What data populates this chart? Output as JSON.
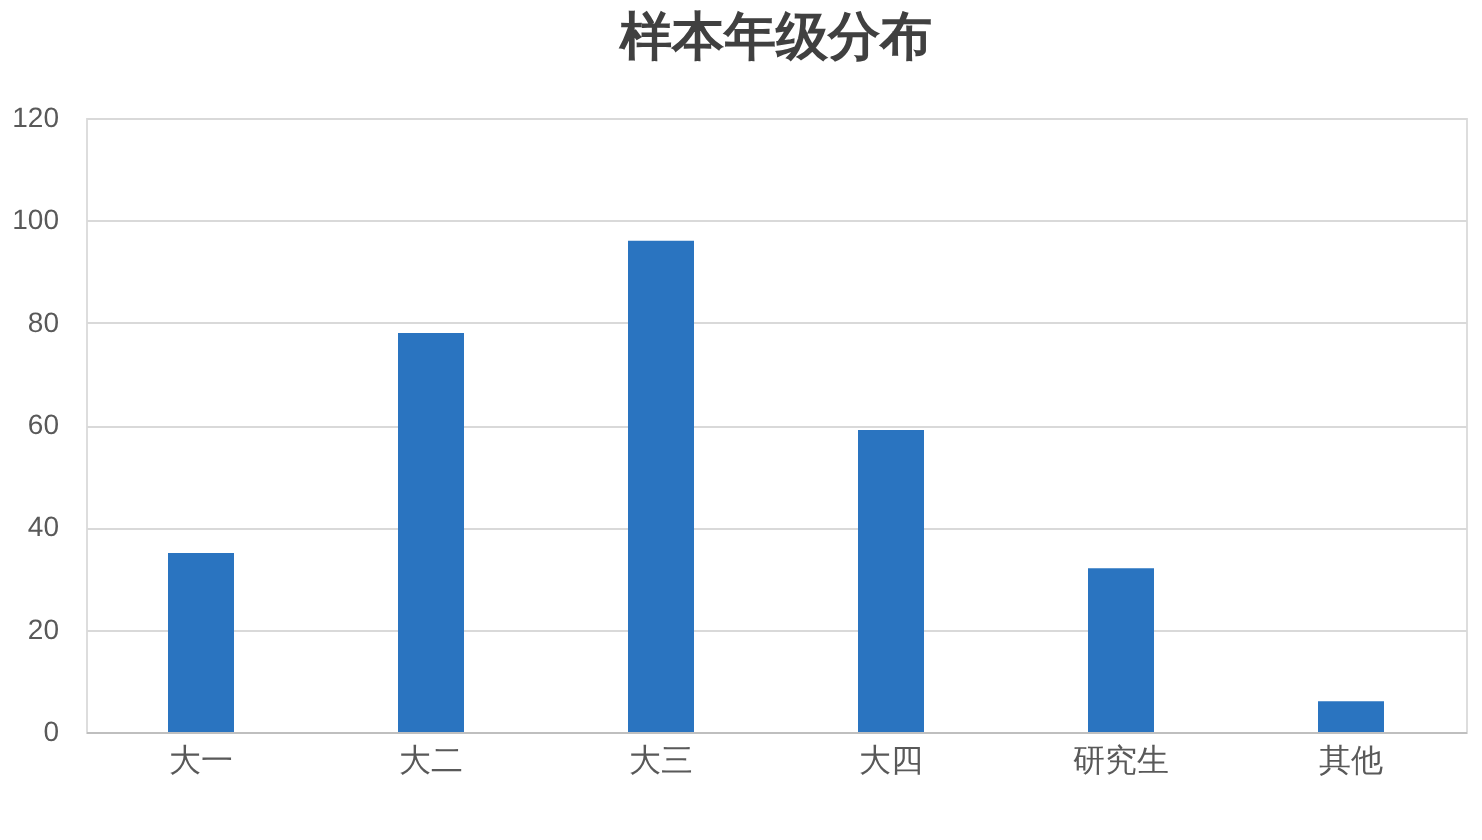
{
  "chart_data": {
    "type": "bar",
    "title": "样本年级分布",
    "categories": [
      "大一",
      "大二",
      "大三",
      "大四",
      "研究生",
      "其他"
    ],
    "values": [
      35,
      78,
      96,
      59,
      32,
      6
    ],
    "color": "#2a74c0",
    "ylim": [
      0,
      120
    ],
    "yticks": [
      0,
      20,
      40,
      60,
      80,
      100,
      120
    ],
    "grid": "y"
  }
}
